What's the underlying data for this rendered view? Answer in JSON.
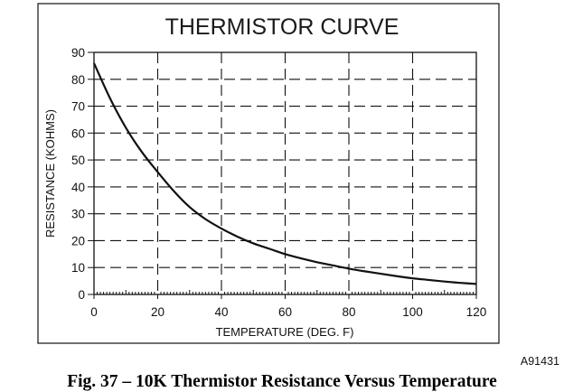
{
  "chart_data": {
    "type": "line",
    "title": "THERMISTOR CURVE",
    "xlabel": "TEMPERATURE (DEG. F)",
    "ylabel": "RESISTANCE (KOHMS)",
    "xlim": [
      0,
      120
    ],
    "ylim": [
      0,
      90
    ],
    "x_ticks": [
      "0",
      "20",
      "40",
      "60",
      "80",
      "100",
      "120"
    ],
    "y_ticks": [
      "0",
      "10",
      "20",
      "30",
      "40",
      "50",
      "60",
      "70",
      "80",
      "90"
    ],
    "grid": true,
    "series": [
      {
        "x": [
          0,
          5,
          10,
          15,
          20,
          25,
          30,
          35,
          40,
          45,
          50,
          55,
          60,
          65,
          70,
          75,
          80,
          85,
          90,
          95,
          100,
          105,
          110,
          115,
          120
        ],
        "values": [
          86,
          73,
          62,
          53,
          45.5,
          38.5,
          32.5,
          28,
          24.5,
          21.5,
          19,
          17,
          15,
          13.4,
          12,
          10.8,
          9.6,
          8.6,
          7.7,
          6.8,
          6,
          5.4,
          4.8,
          4.3,
          3.9
        ]
      }
    ]
  },
  "figure_code": "A91431",
  "caption": "Fig. 37 – 10K Thermistor Resistance Versus Temperature"
}
